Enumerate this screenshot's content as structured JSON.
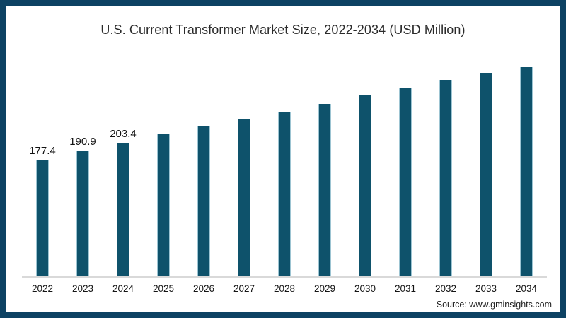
{
  "title": "U.S. Current Transformer Market Size, 2022-2034 (USD Million)",
  "source": "Source: www.gminsights.com",
  "colors": {
    "frame_border": "#0d4263",
    "bar_fill": "#0e526b",
    "bar_edge_highlight": "#9cc4d2",
    "axis_line": "#d9d9d9",
    "title_text": "#2b2b2b",
    "label_text": "#111111"
  },
  "chart_data": {
    "type": "bar",
    "title": "U.S. Current Transformer Market Size, 2022-2034 (USD Million)",
    "categories": [
      "2022",
      "2023",
      "2024",
      "2025",
      "2026",
      "2027",
      "2028",
      "2029",
      "2030",
      "2031",
      "2032",
      "2033",
      "2034"
    ],
    "values": [
      177.4,
      190.9,
      203.4,
      216.0,
      227.8,
      239.6,
      250.4,
      262.2,
      275.1,
      285.8,
      298.7,
      308.4,
      318.1
    ],
    "value_labels": [
      "177.4",
      "190.9",
      "203.4",
      "",
      "",
      "",
      "",
      "",
      "",
      "",
      "",
      "",
      ""
    ],
    "xlabel": "",
    "ylabel": "",
    "ylim": [
      0,
      350
    ],
    "grid": false,
    "legend": false,
    "y_axis_visible": false,
    "note": "Only 2022-2024 bars carry printed value labels; 2025-2034 values estimated from bar heights"
  }
}
